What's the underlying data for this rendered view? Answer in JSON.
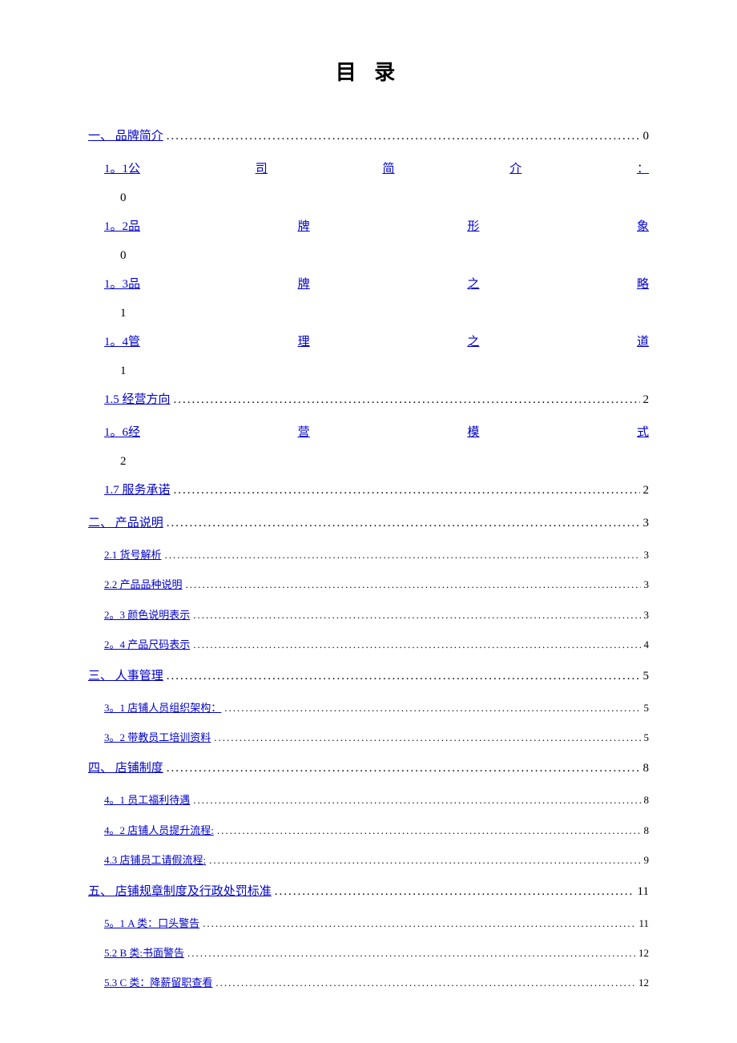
{
  "title": "目 录",
  "link_color": "#0000cc",
  "text_color": "#000000",
  "background_color": "#ffffff",
  "entries": [
    {
      "id": "e0",
      "type": "dotted",
      "level": 0,
      "label": "一、 品牌简介",
      "page": "0",
      "small": false
    },
    {
      "id": "e1",
      "type": "justified",
      "level": 1,
      "num": "1。1",
      "chars": [
        "公",
        "司",
        "简",
        "介",
        "："
      ],
      "page": "0"
    },
    {
      "id": "e2",
      "type": "justified",
      "level": 1,
      "num": "1。2",
      "chars": [
        "品",
        "牌",
        "形",
        "象"
      ],
      "page": "0"
    },
    {
      "id": "e3",
      "type": "justified",
      "level": 1,
      "num": "1。3",
      "chars": [
        "品",
        "牌",
        "之",
        "略"
      ],
      "page": "1"
    },
    {
      "id": "e4",
      "type": "justified",
      "level": 1,
      "num": "1。4",
      "chars": [
        "管",
        "理",
        "之",
        "道"
      ],
      "page": "1"
    },
    {
      "id": "e5",
      "type": "dotted",
      "level": 1,
      "label": "1.5 经营方向",
      "page": "2",
      "small": false
    },
    {
      "id": "e6",
      "type": "justified",
      "level": 1,
      "num": "1。6",
      "chars": [
        "经",
        "营",
        "模",
        "式"
      ],
      "page": "2"
    },
    {
      "id": "e7",
      "type": "dotted",
      "level": 1,
      "label": "1.7 服务承诺",
      "page": "2",
      "small": false
    },
    {
      "id": "e8",
      "type": "dotted",
      "level": 0,
      "label": "二、 产品说明",
      "page": "3",
      "small": false
    },
    {
      "id": "e9",
      "type": "dotted",
      "level": 1,
      "label": "2.1   货号解析",
      "page": "3",
      "small": true
    },
    {
      "id": "e10",
      "type": "dotted",
      "level": 1,
      "label": "2.2   产品品种说明",
      "page": "3",
      "small": true
    },
    {
      "id": "e11",
      "type": "dotted",
      "level": 1,
      "label": "2。3 颜色说明表示",
      "page": "3",
      "small": true
    },
    {
      "id": "e12",
      "type": "dotted",
      "level": 1,
      "label": "2。4 产品尺码表示",
      "page": "4",
      "small": true
    },
    {
      "id": "e13",
      "type": "dotted",
      "level": 0,
      "label": "三、 人事管理",
      "page": "5",
      "small": false
    },
    {
      "id": "e14",
      "type": "dotted",
      "level": 1,
      "label": "3。1 店铺人员组织架构：",
      "page": "5",
      "small": true
    },
    {
      "id": "e15",
      "type": "dotted",
      "level": 1,
      "label": "3。2 带教员工培训资料",
      "page": "5",
      "small": true
    },
    {
      "id": "e16",
      "type": "dotted",
      "level": 0,
      "label": "四、 店铺制度",
      "page": "8",
      "small": false
    },
    {
      "id": "e17",
      "type": "dotted",
      "level": 1,
      "label": "4。1 员工福利待遇",
      "page": "8",
      "small": true
    },
    {
      "id": "e18",
      "type": "dotted",
      "level": 1,
      "label": "4。2 店铺人员提升流程:",
      "page": "8",
      "small": true
    },
    {
      "id": "e19",
      "type": "dotted",
      "level": 1,
      "label": "4.3   店铺员工请假流程:",
      "page": "9",
      "small": true
    },
    {
      "id": "e20",
      "type": "dotted",
      "level": 0,
      "label": "五、 店铺规章制度及行政处罚标准",
      "page": "11",
      "small": false
    },
    {
      "id": "e21",
      "type": "dotted",
      "level": 1,
      "label": "5。1 A 类：口头警告",
      "page": "11",
      "small": true
    },
    {
      "id": "e22",
      "type": "dotted",
      "level": 1,
      "label": "5.2   B 类:书面警告",
      "page": "12",
      "small": true
    },
    {
      "id": "e23",
      "type": "dotted",
      "level": 1,
      "label": "5.3   C 类：降薪留职查看",
      "page": "12",
      "small": true
    }
  ]
}
